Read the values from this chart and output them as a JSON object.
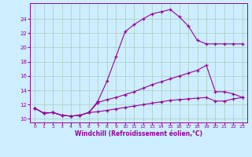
{
  "xlabel": "Windchill (Refroidissement éolien,°C)",
  "bg_color": "#cceeff",
  "grid_color": "#aaccbb",
  "line_color": "#990099",
  "xlim": [
    -0.5,
    23.5
  ],
  "ylim": [
    9.5,
    26.2
  ],
  "yticks": [
    10,
    12,
    14,
    16,
    18,
    20,
    22,
    24
  ],
  "xticks": [
    0,
    1,
    2,
    3,
    4,
    5,
    6,
    7,
    8,
    9,
    10,
    11,
    12,
    13,
    14,
    15,
    16,
    17,
    18,
    19,
    20,
    21,
    22,
    23
  ],
  "series1_x": [
    0,
    1,
    2,
    3,
    4,
    5,
    6,
    7,
    8,
    9,
    10,
    11,
    12,
    13,
    14,
    15,
    16,
    17,
    18,
    19,
    20,
    21,
    22,
    23
  ],
  "series1_y": [
    11.5,
    10.8,
    10.9,
    10.5,
    10.4,
    10.5,
    10.9,
    12.5,
    15.3,
    18.7,
    22.2,
    23.2,
    24.0,
    24.7,
    25.0,
    25.3,
    24.3,
    23.0,
    21.0,
    20.5,
    20.5,
    20.5,
    20.5,
    20.5
  ],
  "series2_x": [
    0,
    1,
    2,
    3,
    4,
    5,
    6,
    7,
    8,
    9,
    10,
    11,
    12,
    13,
    14,
    15,
    16,
    17,
    18,
    19,
    20,
    21,
    22,
    23
  ],
  "series2_y": [
    11.5,
    10.8,
    10.9,
    10.5,
    10.4,
    10.5,
    10.9,
    12.3,
    12.7,
    13.0,
    13.4,
    13.8,
    14.3,
    14.8,
    15.2,
    15.6,
    16.0,
    16.4,
    16.8,
    17.5,
    13.8,
    13.8,
    13.5,
    13.0
  ],
  "series3_x": [
    0,
    1,
    2,
    3,
    4,
    5,
    6,
    7,
    8,
    9,
    10,
    11,
    12,
    13,
    14,
    15,
    16,
    17,
    18,
    19,
    20,
    21,
    22,
    23
  ],
  "series3_y": [
    11.5,
    10.8,
    10.9,
    10.5,
    10.4,
    10.5,
    10.9,
    11.0,
    11.2,
    11.4,
    11.6,
    11.8,
    12.0,
    12.2,
    12.4,
    12.6,
    12.7,
    12.8,
    12.9,
    13.0,
    12.5,
    12.5,
    12.8,
    13.0
  ]
}
